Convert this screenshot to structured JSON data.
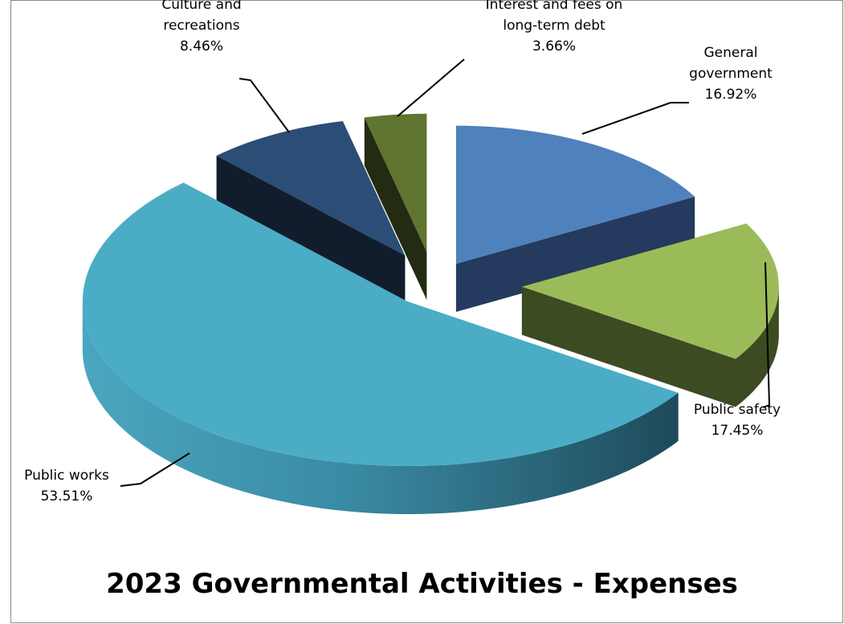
{
  "chart_data": {
    "type": "pie",
    "title": "2023 Governmental Activities - Expenses",
    "slices": [
      {
        "label": "General government",
        "label_lines": [
          "General",
          "government"
        ],
        "value": 16.92,
        "display": "16.92%",
        "color_top": "#4f81bd",
        "color_side": "#243a5e"
      },
      {
        "label": "Public safety",
        "label_lines": [
          "Public safety"
        ],
        "value": 17.45,
        "display": "17.45%",
        "color_top": "#9bbb59",
        "color_side": "#3d4b22"
      },
      {
        "label": "Public works",
        "label_lines": [
          "Public works"
        ],
        "value": 53.51,
        "display": "53.51%",
        "color_top": "#4bacc6",
        "color_side": "#2e6f82"
      },
      {
        "label": "Culture and recreations",
        "label_lines": [
          "Culture and",
          "recreations"
        ],
        "value": 8.46,
        "display": "8.46%",
        "color_top": "#2c4d75",
        "color_side": "#111d2c"
      },
      {
        "label": "Interest and fees on long-term debt",
        "label_lines": [
          "Interest and fees on",
          "long-term debt"
        ],
        "value": 3.66,
        "display": "3.66%",
        "color_top": "#5f7530",
        "color_side": "#232b12"
      }
    ],
    "legend": "none",
    "data_labels": "outside with leader lines"
  }
}
